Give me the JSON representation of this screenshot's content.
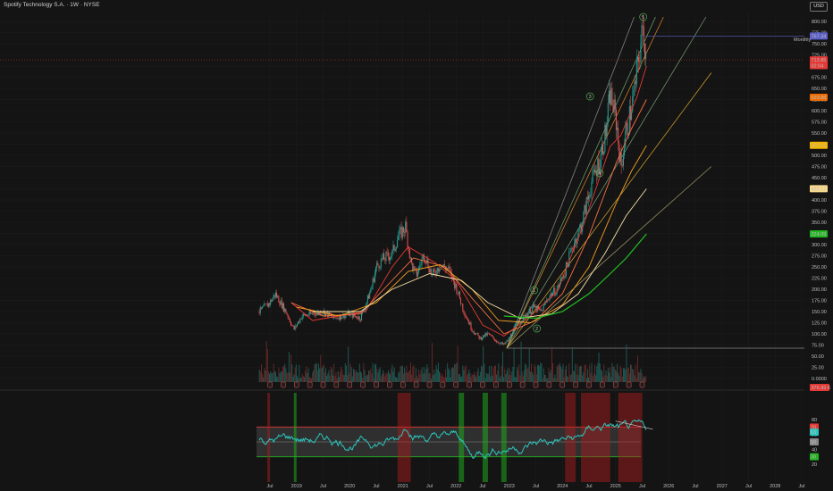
{
  "header": {
    "title": "Spotify Technology S.A. · 1W · NYSE",
    "currency": "USD"
  },
  "colors": {
    "background": "#141414",
    "up": "#26a69a",
    "down": "#ef5350",
    "rsi": "#2bc7bf"
  },
  "price_axis": {
    "ticks": [
      "800.00",
      "775.00",
      "750.00",
      "725.00",
      "700.00",
      "675.00",
      "650.00",
      "625.00",
      "600.00",
      "575.00",
      "550.00",
      "525.00",
      "500.00",
      "475.00",
      "450.00",
      "425.00",
      "400.00",
      "375.00",
      "350.00",
      "325.00",
      "300.00",
      "275.00",
      "250.00",
      "225.00",
      "200.00",
      "175.00",
      "150.00",
      "125.00",
      "100.00",
      "75.00",
      "50.00",
      "25.00",
      "0.0000"
    ],
    "labels": [
      {
        "text": "767.34",
        "value": 767.34,
        "bg": "#5b5fc7",
        "fg": "#ffffff"
      },
      {
        "text": "713.85",
        "value": 713.85,
        "bg": "#e53935",
        "fg": "#ffffff"
      },
      {
        "text": "02:04",
        "value": 701,
        "bg": "#e53935",
        "fg": "#ffffff"
      },
      {
        "text": "629.88",
        "value": 629.88,
        "bg": "#ef6c00",
        "fg": "#ffffff"
      },
      {
        "text": "522.61",
        "value": 522.61,
        "bg": "#f4b400",
        "fg": "#000000"
      },
      {
        "text": "425.17",
        "value": 425.17,
        "bg": "#f7d98c",
        "fg": "#000000"
      },
      {
        "text": "324.09",
        "value": 324.09,
        "bg": "#22b422",
        "fg": "#ffffff"
      }
    ],
    "monthly_label": "Monthly",
    "volume_label": "376.99 K"
  },
  "rsi_axis": {
    "ticks": [
      "80",
      "60",
      "40",
      "20"
    ],
    "labels": [
      {
        "text": "70",
        "value": 70,
        "bg": "#e53935",
        "fg": "#ffffff"
      },
      {
        "text": "63",
        "value": 63,
        "bg": "#2bc7bf",
        "fg": "#000000"
      },
      {
        "text": "50",
        "value": 50,
        "bg": "#888888",
        "fg": "#000000"
      },
      {
        "text": "30",
        "value": 30,
        "bg": "#22b422",
        "fg": "#ffffff"
      }
    ]
  },
  "time_axis": [
    "Jul",
    "2019",
    "Jul",
    "2020",
    "Jul",
    "2021",
    "Jul",
    "2022",
    "Jul",
    "2023",
    "Jul",
    "2024",
    "Jul",
    "2025",
    "Jul",
    "2026",
    "Jul",
    "2027",
    "Jul",
    "2028",
    "Jul"
  ],
  "waves": [
    "1",
    "2",
    "3",
    "4",
    "5"
  ],
  "chart_data": {
    "type": "candlestick",
    "x_unit": "year",
    "ylim": [
      0,
      810
    ],
    "price_path": [
      [
        2018.3,
        150
      ],
      [
        2018.5,
        170
      ],
      [
        2018.6,
        190
      ],
      [
        2018.8,
        150
      ],
      [
        2018.95,
        110
      ],
      [
        2019.1,
        140
      ],
      [
        2019.3,
        145
      ],
      [
        2019.5,
        150
      ],
      [
        2019.7,
        135
      ],
      [
        2019.85,
        140
      ],
      [
        2020.0,
        145
      ],
      [
        2020.2,
        135
      ],
      [
        2020.3,
        165
      ],
      [
        2020.4,
        200
      ],
      [
        2020.5,
        250
      ],
      [
        2020.6,
        265
      ],
      [
        2020.8,
        280
      ],
      [
        2020.9,
        315
      ],
      [
        2021.05,
        340
      ],
      [
        2021.15,
        260
      ],
      [
        2021.25,
        230
      ],
      [
        2021.4,
        280
      ],
      [
        2021.55,
        230
      ],
      [
        2021.7,
        255
      ],
      [
        2021.85,
        245
      ],
      [
        2022.0,
        205
      ],
      [
        2022.15,
        150
      ],
      [
        2022.3,
        110
      ],
      [
        2022.45,
        90
      ],
      [
        2022.6,
        100
      ],
      [
        2022.75,
        85
      ],
      [
        2022.9,
        75
      ],
      [
        2023.0,
        90
      ],
      [
        2023.15,
        125
      ],
      [
        2023.3,
        140
      ],
      [
        2023.45,
        160
      ],
      [
        2023.6,
        150
      ],
      [
        2023.75,
        185
      ],
      [
        2023.9,
        200
      ],
      [
        2024.05,
        240
      ],
      [
        2024.2,
        300
      ],
      [
        2024.35,
        340
      ],
      [
        2024.55,
        440
      ],
      [
        2024.7,
        490
      ],
      [
        2024.82,
        555
      ],
      [
        2024.9,
        640
      ],
      [
        2025.02,
        570
      ],
      [
        2025.1,
        470
      ],
      [
        2025.18,
        540
      ],
      [
        2025.25,
        580
      ],
      [
        2025.35,
        640
      ],
      [
        2025.45,
        730
      ],
      [
        2025.52,
        785
      ],
      [
        2025.58,
        714
      ]
    ],
    "moving_averages": [
      {
        "color": "#e53935",
        "path": [
          [
            2018.9,
            170
          ],
          [
            2019.3,
            130
          ],
          [
            2019.8,
            140
          ],
          [
            2020.3,
            150
          ],
          [
            2020.8,
            250
          ],
          [
            2021.1,
            295
          ],
          [
            2021.6,
            260
          ],
          [
            2022.0,
            220
          ],
          [
            2022.5,
            120
          ],
          [
            2022.9,
            95
          ],
          [
            2023.4,
            140
          ],
          [
            2023.9,
            195
          ],
          [
            2024.4,
            345
          ],
          [
            2024.9,
            520
          ],
          [
            2025.1,
            545
          ],
          [
            2025.4,
            630
          ],
          [
            2025.58,
            700
          ]
        ]
      },
      {
        "color": "#ff7043",
        "path": [
          [
            2018.9,
            170
          ],
          [
            2019.5,
            140
          ],
          [
            2020.2,
            145
          ],
          [
            2020.8,
            220
          ],
          [
            2021.2,
            270
          ],
          [
            2021.8,
            250
          ],
          [
            2022.3,
            180
          ],
          [
            2022.9,
            100
          ],
          [
            2023.5,
            130
          ],
          [
            2024.0,
            190
          ],
          [
            2024.5,
            320
          ],
          [
            2025.0,
            480
          ],
          [
            2025.3,
            560
          ],
          [
            2025.58,
            625
          ]
        ]
      },
      {
        "color": "#f4a021",
        "path": [
          [
            2019.0,
            160
          ],
          [
            2019.8,
            140
          ],
          [
            2020.5,
            170
          ],
          [
            2021.1,
            240
          ],
          [
            2021.7,
            255
          ],
          [
            2022.3,
            200
          ],
          [
            2022.8,
            130
          ],
          [
            2023.4,
            125
          ],
          [
            2024.0,
            165
          ],
          [
            2024.5,
            250
          ],
          [
            2025.0,
            390
          ],
          [
            2025.3,
            465
          ],
          [
            2025.58,
            522
          ]
        ]
      },
      {
        "color": "#f7dfa6",
        "path": [
          [
            2019.3,
            150
          ],
          [
            2020.2,
            150
          ],
          [
            2020.8,
            200
          ],
          [
            2021.5,
            235
          ],
          [
            2022.1,
            220
          ],
          [
            2022.6,
            170
          ],
          [
            2023.2,
            135
          ],
          [
            2023.8,
            145
          ],
          [
            2024.3,
            190
          ],
          [
            2024.8,
            280
          ],
          [
            2025.2,
            365
          ],
          [
            2025.58,
            425
          ]
        ]
      },
      {
        "color": "#22c322",
        "path": [
          [
            2022.9,
            140
          ],
          [
            2023.5,
            135
          ],
          [
            2024.0,
            150
          ],
          [
            2024.5,
            190
          ],
          [
            2024.9,
            235
          ],
          [
            2025.2,
            270
          ],
          [
            2025.58,
            324
          ]
        ]
      }
    ],
    "fan_lines_from": [
      2022.95,
      68
    ],
    "fan_lines": [
      {
        "color": "#8e8e8e",
        "to": [
          2025.35,
          810
        ]
      },
      {
        "color": "#73a873",
        "to": [
          2025.75,
          810
        ]
      },
      {
        "color": "#e88a2a",
        "to": [
          2025.9,
          810
        ]
      },
      {
        "color": "#7aa07a",
        "to": [
          2026.7,
          810
        ]
      },
      {
        "color": "#d8a72e",
        "to": [
          2026.8,
          685
        ]
      },
      {
        "color": "#a6a06a",
        "to": [
          2026.8,
          475
        ]
      }
    ],
    "horizontal_lines": [
      {
        "value": 767.34,
        "color": "#5b5fc7",
        "from": 2025.55
      },
      {
        "value": 68,
        "color": "#8a8a8a",
        "from": 2022.95
      }
    ],
    "wave_points": [
      [
        2023.47,
        198
      ],
      [
        2023.52,
        112
      ],
      [
        2024.52,
        632
      ],
      [
        2024.7,
        460
      ],
      [
        2025.52,
        810
      ]
    ],
    "volume": "bars",
    "rsi": {
      "overbought": 70,
      "middle": 50,
      "oversold": 30,
      "last": 63
    }
  }
}
